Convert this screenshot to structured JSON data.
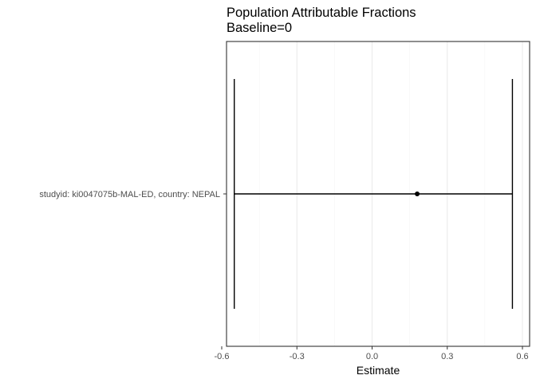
{
  "chart_data": {
    "type": "forest",
    "title": "Population Attributable Fractions",
    "subtitle": "Baseline=0",
    "xlabel": "Estimate",
    "ylabel": "",
    "xlim": [
      -0.6,
      0.6
    ],
    "x_ticks": [
      -0.6,
      -0.3,
      0.0,
      0.3,
      0.6
    ],
    "x_tick_labels": [
      "-0.6",
      "-0.3",
      "0.0",
      "0.3",
      "0.6"
    ],
    "grid": true,
    "legend": "none",
    "colors": {
      "point": "#000000",
      "line": "#000000",
      "grid_major": "#ebebeb",
      "grid_minor": "#f5f5f5",
      "panel_border": "#333333",
      "tick_label": "#4d4d4d"
    },
    "points": [
      {
        "label": "studyid: ki0047075b-MAL-ED, country: NEPAL",
        "estimate": 0.18,
        "ci_lower": -0.55,
        "ci_upper": 0.56
      }
    ]
  }
}
